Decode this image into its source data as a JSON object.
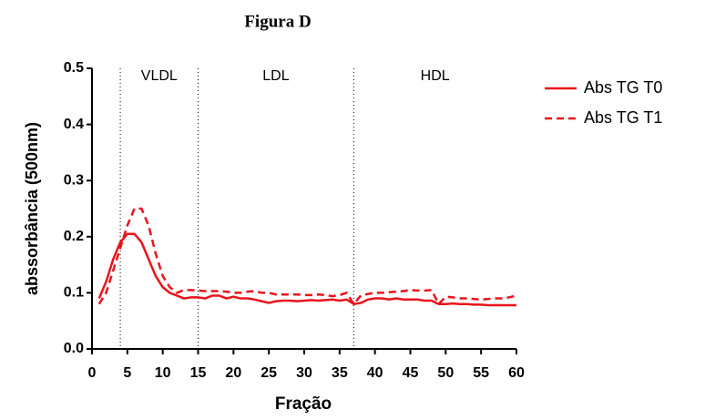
{
  "chart_data": {
    "type": "line",
    "title": "Figura D",
    "x_label": "Fração",
    "y_label": "abssorbância (500nm)",
    "x": [
      1,
      2,
      3,
      4,
      5,
      6,
      7,
      8,
      9,
      10,
      11,
      12,
      13,
      14,
      15,
      16,
      17,
      18,
      19,
      20,
      21,
      22,
      23,
      24,
      25,
      26,
      27,
      28,
      29,
      30,
      31,
      32,
      33,
      34,
      35,
      36,
      37,
      38,
      39,
      40,
      41,
      42,
      43,
      44,
      45,
      46,
      47,
      48,
      49,
      50,
      51,
      52,
      53,
      54,
      55,
      56,
      57,
      58,
      59,
      60
    ],
    "series": [
      {
        "name": "Abs TG T0",
        "color": "#e8141c",
        "dash": "solid",
        "values": [
          0.09,
          0.12,
          0.16,
          0.19,
          0.205,
          0.205,
          0.19,
          0.16,
          0.13,
          0.11,
          0.1,
          0.095,
          0.09,
          0.092,
          0.092,
          0.09,
          0.095,
          0.095,
          0.09,
          0.093,
          0.09,
          0.09,
          0.088,
          0.085,
          0.082,
          0.085,
          0.086,
          0.086,
          0.085,
          0.086,
          0.087,
          0.086,
          0.087,
          0.088,
          0.086,
          0.088,
          0.08,
          0.082,
          0.088,
          0.09,
          0.09,
          0.088,
          0.09,
          0.088,
          0.088,
          0.088,
          0.086,
          0.086,
          0.08,
          0.08,
          0.081,
          0.08,
          0.08,
          0.079,
          0.079,
          0.078,
          0.078,
          0.078,
          0.078,
          0.078
        ]
      },
      {
        "name": "Abs TG T1",
        "color": "#e8141c",
        "dash": "dashed",
        "values": [
          0.08,
          0.1,
          0.14,
          0.18,
          0.22,
          0.25,
          0.25,
          0.22,
          0.17,
          0.13,
          0.11,
          0.1,
          0.105,
          0.105,
          0.104,
          0.103,
          0.103,
          0.103,
          0.102,
          0.1,
          0.1,
          0.102,
          0.103,
          0.1,
          0.1,
          0.097,
          0.097,
          0.097,
          0.097,
          0.096,
          0.096,
          0.097,
          0.096,
          0.094,
          0.096,
          0.1,
          0.08,
          0.095,
          0.098,
          0.1,
          0.1,
          0.101,
          0.102,
          0.103,
          0.105,
          0.104,
          0.104,
          0.105,
          0.08,
          0.093,
          0.092,
          0.09,
          0.09,
          0.089,
          0.088,
          0.089,
          0.09,
          0.09,
          0.092,
          0.095
        ]
      }
    ],
    "dividers": [
      4,
      15,
      37
    ],
    "regions": [
      "VLDL",
      "LDL",
      "HDL"
    ],
    "xlim": [
      0,
      60
    ],
    "xticks": [
      0,
      5,
      10,
      15,
      20,
      25,
      30,
      35,
      40,
      45,
      50,
      55,
      60
    ],
    "ylim": [
      0,
      0.5
    ],
    "yticks": [
      {
        "value": 0,
        "label": "0.0"
      },
      {
        "value": 0.1,
        "label": "0.1"
      },
      {
        "value": 0.2,
        "label": "0.2"
      },
      {
        "value": 0.3,
        "label": "0.3"
      },
      {
        "value": 0.4,
        "label": "0.4"
      },
      {
        "value": 0.5,
        "label": "0.5"
      }
    ],
    "legend": "right"
  }
}
